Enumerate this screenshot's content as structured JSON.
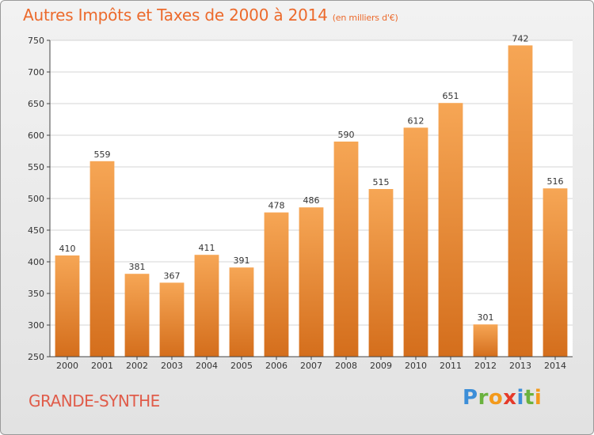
{
  "header": {
    "title": "Autres Impôts et Taxes de 2000 à 2014",
    "subtitle": "(en milliers d'€)"
  },
  "footer": {
    "city": "GRANDE-SYNTHE",
    "logo_letters": [
      {
        "char": "P",
        "color": "#3c8ed8"
      },
      {
        "char": "r",
        "color": "#6ab23e"
      },
      {
        "char": "o",
        "color": "#f39a1c"
      },
      {
        "char": "x",
        "color": "#e53a2a"
      },
      {
        "char": "i",
        "color": "#3c8ed8"
      },
      {
        "char": "t",
        "color": "#6ab23e"
      },
      {
        "char": "i",
        "color": "#f39a1c"
      }
    ]
  },
  "colors": {
    "accent": "#ec6a2c",
    "bar_top": "#f6a655",
    "bar_bottom": "#d46e1c"
  },
  "chart_data": {
    "type": "bar",
    "title": "Autres Impôts et Taxes de 2000 à 2014",
    "subtitle": "(en milliers d'€)",
    "categories": [
      "2000",
      "2001",
      "2002",
      "2003",
      "2004",
      "2005",
      "2006",
      "2007",
      "2008",
      "2009",
      "2010",
      "2011",
      "2012",
      "2013",
      "2014"
    ],
    "values": [
      410,
      559,
      381,
      367,
      411,
      391,
      478,
      486,
      590,
      515,
      612,
      651,
      301,
      742,
      516
    ],
    "ylim": [
      250,
      750
    ],
    "yticks": [
      250,
      300,
      350,
      400,
      450,
      500,
      550,
      600,
      650,
      700,
      750
    ],
    "grid": true
  }
}
